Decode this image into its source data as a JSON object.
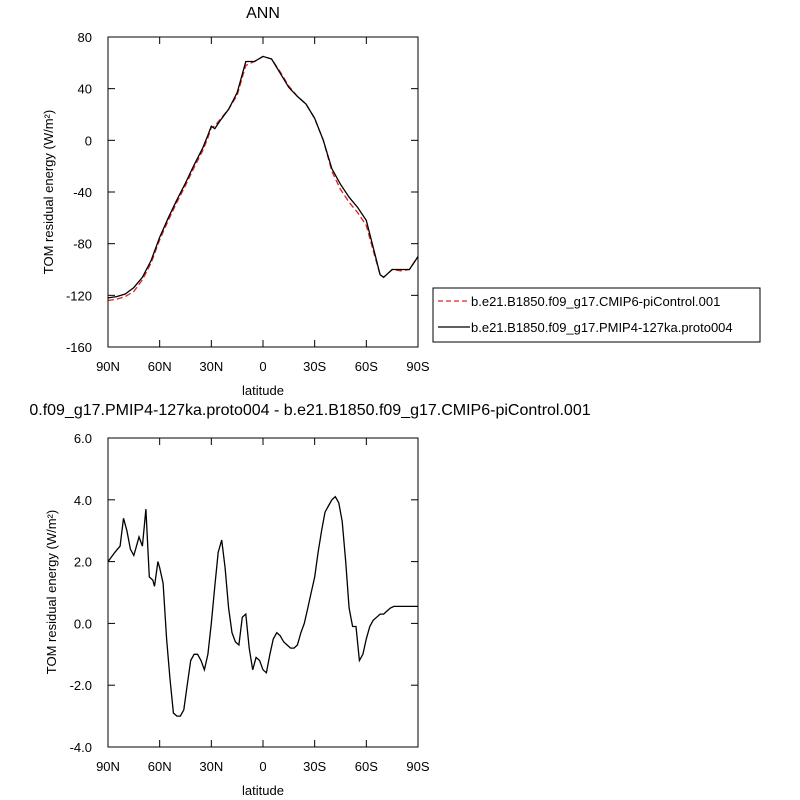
{
  "chart_data": [
    {
      "type": "line",
      "title": "ANN",
      "xlabel": "latitude",
      "ylabel": "TOM residual energy (W/m²)",
      "xlim": [
        90,
        -90
      ],
      "ylim": [
        -160,
        80
      ],
      "x_ticks": [
        90,
        60,
        30,
        0,
        -30,
        -60,
        -90
      ],
      "x_tick_labels": [
        "90N",
        "60N",
        "30N",
        "0",
        "30S",
        "60S",
        "90S"
      ],
      "y_ticks": [
        80,
        40,
        0,
        -40,
        -80,
        -120,
        -160
      ],
      "y_tick_labels": [
        "80",
        "40",
        "0",
        "-40",
        "-80",
        "-120",
        "-160"
      ],
      "legend": [
        "b.e21.B1850.f09_g17.CMIP6-piControl.001",
        "b.e21.B1850.f09_g17.PMIP4-127ka.proto004"
      ],
      "series": [
        {
          "name": "b.e21.B1850.f09_g17.CMIP6-piControl.001",
          "color": "#e02020",
          "dash": "dashed",
          "x": [
            90,
            85,
            80,
            75,
            70,
            65,
            60,
            55,
            50,
            45,
            40,
            35,
            32,
            30,
            28,
            25,
            20,
            15,
            10,
            5,
            0,
            -5,
            -10,
            -15,
            -20,
            -25,
            -30,
            -35,
            -40,
            -45,
            -50,
            -55,
            -60,
            -65,
            -68,
            -70,
            -75,
            -80,
            -85,
            -90
          ],
          "y": [
            -124,
            -123,
            -121,
            -117,
            -108,
            -95,
            -77,
            -62,
            -48,
            -35,
            -21,
            -8,
            2,
            10,
            11,
            16,
            24,
            35,
            58,
            61,
            65,
            63,
            53,
            42,
            34,
            28,
            17,
            0,
            -24,
            -38,
            -48,
            -56,
            -66,
            -90,
            -104,
            -106,
            -100,
            -101,
            -100,
            -90
          ]
        },
        {
          "name": "b.e21.B1850.f09_g17.PMIP4-127ka.proto004",
          "color": "#000000",
          "dash": "solid",
          "x": [
            90,
            85,
            80,
            75,
            70,
            65,
            60,
            55,
            50,
            45,
            40,
            35,
            32,
            30,
            28,
            25,
            20,
            15,
            10,
            5,
            0,
            -5,
            -10,
            -15,
            -20,
            -25,
            -30,
            -35,
            -40,
            -45,
            -50,
            -55,
            -60,
            -65,
            -68,
            -70,
            -75,
            -80,
            -85,
            -90
          ],
          "y": [
            -122,
            -121,
            -119,
            -114,
            -106,
            -93,
            -75,
            -60,
            -46,
            -33,
            -19,
            -6,
            4,
            11,
            9,
            15,
            24,
            37,
            61,
            61,
            65,
            63,
            52,
            41,
            34,
            28,
            17,
            0,
            -22,
            -34,
            -44,
            -52,
            -62,
            -88,
            -104,
            -106,
            -100,
            -100,
            -100,
            -90
          ]
        }
      ]
    },
    {
      "type": "line",
      "title": "0.f09_g17.PMIP4-127ka.proto004 - b.e21.B1850.f09_g17.CMIP6-piControl.001",
      "xlabel": "latitude",
      "ylabel": "TOM residual energy (W/m²)",
      "xlim": [
        90,
        -90
      ],
      "ylim": [
        -4,
        6
      ],
      "x_ticks": [
        90,
        60,
        30,
        0,
        -30,
        -60,
        -90
      ],
      "x_tick_labels": [
        "90N",
        "60N",
        "30N",
        "0",
        "30S",
        "60S",
        "90S"
      ],
      "y_ticks": [
        6,
        4,
        2,
        0,
        -2,
        -4
      ],
      "y_tick_labels": [
        "6.0",
        "4.0",
        "2.0",
        "0.0",
        "-2.0",
        "-4.0"
      ],
      "series": [
        {
          "color": "#000000",
          "dash": "solid",
          "x": [
            90,
            86,
            83,
            81,
            79,
            77,
            75,
            74,
            72,
            70,
            68,
            66,
            64,
            63,
            61,
            60,
            58,
            56,
            54,
            52,
            50,
            48,
            46,
            44,
            42,
            40,
            38,
            36,
            34,
            32,
            30,
            28,
            26,
            24,
            22,
            20,
            18,
            16,
            14,
            12,
            10,
            8,
            6,
            4,
            2,
            0,
            -2,
            -4,
            -6,
            -8,
            -10,
            -12,
            -14,
            -16,
            -18,
            -20,
            -22,
            -24,
            -26,
            -28,
            -30,
            -32,
            -34,
            -36,
            -38,
            -40,
            -42,
            -44,
            -46,
            -48,
            -50,
            -52,
            -54,
            -56,
            -58,
            -60,
            -62,
            -64,
            -66,
            -68,
            -70,
            -72,
            -74,
            -76,
            -78,
            -80,
            -82,
            -84,
            -86,
            -88,
            -90
          ],
          "y": [
            2.0,
            2.3,
            2.5,
            3.4,
            3.0,
            2.4,
            2.2,
            2.4,
            2.8,
            2.5,
            3.7,
            1.5,
            1.4,
            1.2,
            2.0,
            1.8,
            1.3,
            -0.5,
            -1.8,
            -2.9,
            -3.0,
            -3.0,
            -2.8,
            -2.0,
            -1.2,
            -1.0,
            -1.0,
            -1.2,
            -1.5,
            -1.0,
            0.0,
            1.2,
            2.3,
            2.7,
            1.8,
            0.5,
            -0.3,
            -0.6,
            -0.7,
            0.2,
            0.3,
            -0.8,
            -1.5,
            -1.1,
            -1.2,
            -1.5,
            -1.6,
            -1.0,
            -0.5,
            -0.3,
            -0.4,
            -0.6,
            -0.7,
            -0.8,
            -0.8,
            -0.7,
            -0.3,
            0.0,
            0.5,
            1.0,
            1.5,
            2.3,
            3.0,
            3.6,
            3.8,
            4.0,
            4.1,
            3.9,
            3.3,
            2.0,
            0.5,
            -0.1,
            -0.1,
            -1.2,
            -1.0,
            -0.5,
            -0.1,
            0.1,
            0.2,
            0.3,
            0.3,
            0.4,
            0.5,
            0.55,
            0.55,
            0.55,
            0.55,
            0.55,
            0.55,
            0.55,
            0.55
          ]
        }
      ]
    }
  ]
}
